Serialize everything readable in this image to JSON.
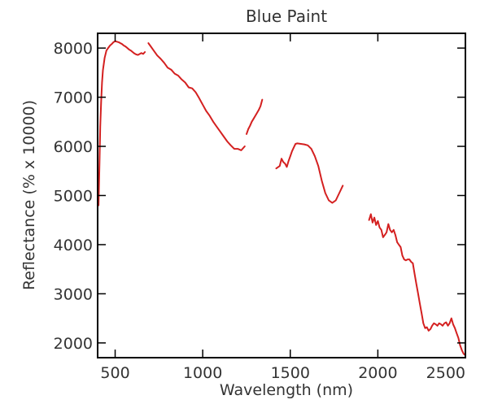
{
  "chart_data": {
    "type": "line",
    "title": "Blue Paint",
    "xlabel": "Wavelength (nm)",
    "ylabel": "Reflectance (% x 10000)",
    "xlim": [
      400,
      2500
    ],
    "ylim": [
      1700,
      8300
    ],
    "xticks": [
      500,
      1000,
      1500,
      2000,
      2500
    ],
    "yticks": [
      2000,
      3000,
      4000,
      5000,
      6000,
      7000,
      8000
    ],
    "grid": false,
    "line_color": "#d42020",
    "axis_color": "#000000",
    "segments": [
      {
        "x": [
          405,
          410,
          415,
          420,
          425,
          430,
          440,
          450,
          460,
          470,
          480,
          490,
          500,
          510,
          520,
          530,
          540,
          550,
          560,
          570,
          580,
          590,
          600,
          610,
          620,
          630,
          640,
          650,
          660,
          670
        ],
        "y": [
          4800,
          5600,
          6400,
          6900,
          7300,
          7550,
          7800,
          7950,
          8000,
          8050,
          8080,
          8120,
          8140,
          8130,
          8120,
          8100,
          8080,
          8050,
          8030,
          8000,
          7970,
          7950,
          7920,
          7890,
          7870,
          7860,
          7880,
          7900,
          7880,
          7920
        ]
      },
      {
        "x": [
          690,
          700,
          720,
          740,
          760,
          780,
          800,
          820,
          840,
          860,
          880,
          900,
          920,
          940,
          960,
          980,
          1000,
          1020,
          1040,
          1060,
          1080,
          1100,
          1120,
          1140,
          1160,
          1180,
          1200,
          1220,
          1240
        ],
        "y": [
          8100,
          8050,
          7950,
          7850,
          7780,
          7700,
          7600,
          7560,
          7480,
          7440,
          7360,
          7300,
          7200,
          7180,
          7100,
          6980,
          6850,
          6720,
          6620,
          6500,
          6400,
          6300,
          6200,
          6100,
          6020,
          5950,
          5950,
          5920,
          6000
        ]
      },
      {
        "x": [
          1250,
          1260,
          1270,
          1280,
          1290,
          1300,
          1310,
          1320,
          1330,
          1340
        ],
        "y": [
          6250,
          6350,
          6420,
          6500,
          6560,
          6620,
          6680,
          6740,
          6820,
          6950
        ]
      },
      {
        "x": [
          1420,
          1440,
          1450,
          1460,
          1470,
          1480,
          1490,
          1500,
          1510,
          1520,
          1530,
          1540,
          1560,
          1580,
          1600,
          1620,
          1640,
          1660,
          1680,
          1700,
          1720,
          1740,
          1760,
          1780,
          1800
        ],
        "y": [
          5550,
          5600,
          5750,
          5680,
          5650,
          5580,
          5700,
          5800,
          5900,
          5980,
          6050,
          6060,
          6050,
          6040,
          6020,
          5950,
          5800,
          5600,
          5300,
          5050,
          4900,
          4850,
          4900,
          5050,
          5200
        ]
      },
      {
        "x": [
          1950,
          1960,
          1970,
          1980,
          1990,
          2000,
          2010,
          2020,
          2030,
          2040,
          2050,
          2060,
          2070,
          2080,
          2090,
          2100,
          2110,
          2120,
          2130,
          2140,
          2150,
          2160,
          2170,
          2180,
          2190,
          2200,
          2210,
          2220,
          2230,
          2240,
          2250,
          2260,
          2270,
          2280,
          2290,
          2300,
          2310,
          2320,
          2330,
          2340,
          2350,
          2360,
          2370,
          2380,
          2390,
          2400,
          2410,
          2420,
          2430,
          2440,
          2450,
          2460,
          2470,
          2480,
          2490,
          2500
        ],
        "y": [
          4500,
          4620,
          4450,
          4550,
          4400,
          4480,
          4350,
          4300,
          4150,
          4200,
          4250,
          4420,
          4300,
          4250,
          4300,
          4200,
          4050,
          4000,
          3950,
          3780,
          3700,
          3680,
          3700,
          3700,
          3650,
          3620,
          3400,
          3200,
          3000,
          2800,
          2600,
          2400,
          2300,
          2320,
          2250,
          2280,
          2350,
          2400,
          2380,
          2350,
          2400,
          2380,
          2350,
          2400,
          2420,
          2350,
          2400,
          2500,
          2380,
          2300,
          2200,
          2100,
          1950,
          1850,
          1780,
          1750
        ]
      }
    ]
  }
}
